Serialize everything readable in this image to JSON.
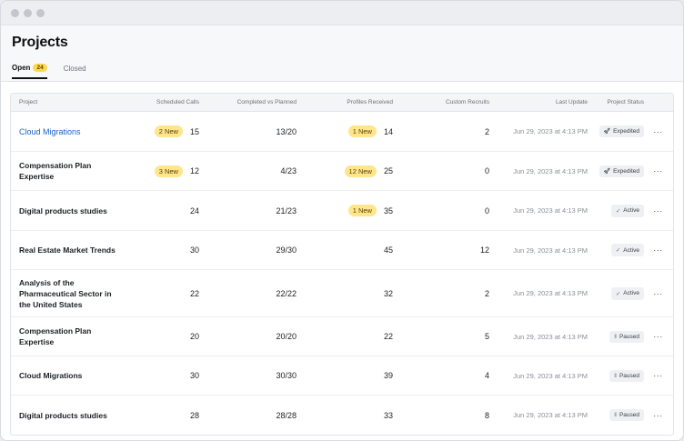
{
  "page": {
    "title": "Projects"
  },
  "tabs": [
    {
      "label": "Open",
      "count": "24"
    },
    {
      "label": "Closed"
    }
  ],
  "table": {
    "columns": [
      "Project",
      "Scheduled Calls",
      "Completed vs Planned",
      "Profiles Received",
      "Custom Recruits",
      "Last Update",
      "Project Status"
    ],
    "rows": [
      {
        "project": "Cloud Migrations",
        "sched_badge": "2 New",
        "sched": "15",
        "completed": "13/20",
        "prof_badge": "1 New",
        "profiles": "14",
        "custom": "2",
        "updated": "Jun 29, 2023 at 4:13 PM",
        "status": "Expedited",
        "status_icon": "rocket-icon",
        "more": "···"
      },
      {
        "project": "Compensation Plan Expertise",
        "sched_badge": "3 New",
        "sched": "12",
        "completed": "4/23",
        "prof_badge": "12 New",
        "profiles": "25",
        "custom": "0",
        "updated": "Jun 29, 2023 at 4:13 PM",
        "status": "Expedited",
        "status_icon": "rocket-icon",
        "more": "···"
      },
      {
        "project": "Digital products studies",
        "sched_badge": "",
        "sched": "24",
        "completed": "21/23",
        "prof_badge": "1 New",
        "profiles": "35",
        "custom": "0",
        "updated": "Jun 29, 2023 at 4:13 PM",
        "status": "Active",
        "status_icon": "check-icon",
        "more": "···"
      },
      {
        "project": "Real Estate Market Trends",
        "sched_badge": "",
        "sched": "30",
        "completed": "29/30",
        "prof_badge": "",
        "profiles": "45",
        "custom": "12",
        "updated": "Jun 29, 2023 at 4:13 PM",
        "status": "Active",
        "status_icon": "check-icon",
        "more": "···"
      },
      {
        "project": "Analysis of the Pharmaceutical Sector in the United States",
        "sched_badge": "",
        "sched": "22",
        "completed": "22/22",
        "prof_badge": "",
        "profiles": "32",
        "custom": "2",
        "updated": "Jun 29, 2023 at 4:13 PM",
        "status": "Active",
        "status_icon": "check-icon",
        "more": "···"
      },
      {
        "project": "Compensation Plan Expertise",
        "sched_badge": "",
        "sched": "20",
        "completed": "20/20",
        "prof_badge": "",
        "profiles": "22",
        "custom": "5",
        "updated": "Jun 29, 2023 at 4:13 PM",
        "status": "Paused",
        "status_icon": "pause-icon",
        "more": "···"
      },
      {
        "project": "Cloud Migrations",
        "sched_badge": "",
        "sched": "30",
        "completed": "30/30",
        "prof_badge": "",
        "profiles": "39",
        "custom": "4",
        "updated": "Jun 29, 2023 at 4:13 PM",
        "status": "Paused",
        "status_icon": "pause-icon",
        "more": "···"
      },
      {
        "project": "Digital products studies",
        "sched_badge": "",
        "sched": "28",
        "completed": "28/28",
        "prof_badge": "",
        "profiles": "33",
        "custom": "8",
        "updated": "Jun 29, 2023 at 4:13 PM",
        "status": "Paused",
        "status_icon": "pause-icon",
        "more": "···"
      }
    ]
  },
  "colors": {
    "accent_link": "#1a65c2",
    "badge_yellow": "#ffe58c",
    "tab_count": "#ffd84d"
  }
}
